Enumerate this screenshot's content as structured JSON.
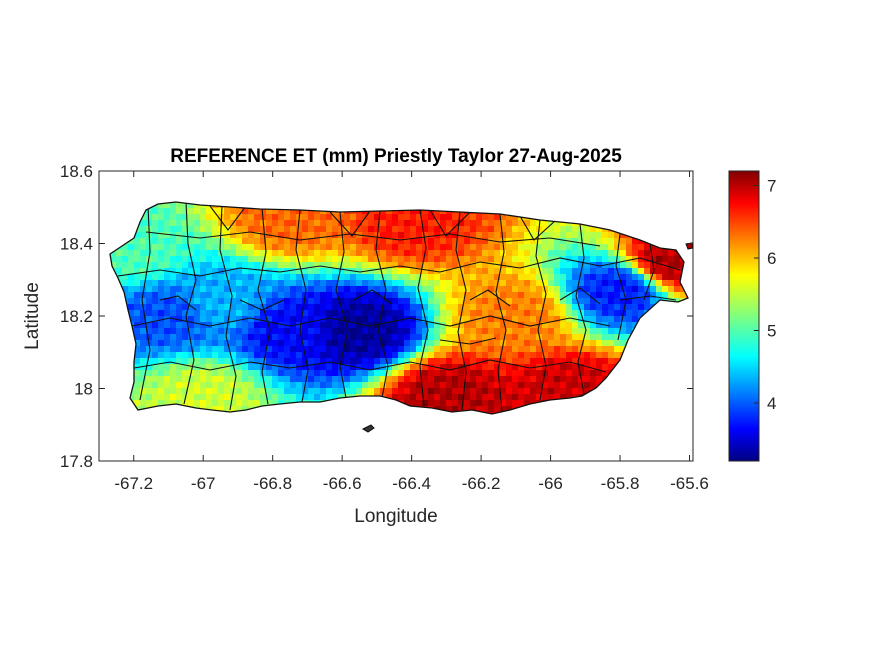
{
  "chart_data": {
    "type": "heatmap",
    "title": "REFERENCE ET (mm) Priestly Taylor 27-Aug-2025",
    "xlabel": "Longitude",
    "ylabel": "Latitude",
    "xlim": [
      -67.3,
      -65.59
    ],
    "ylim": [
      17.8,
      18.6
    ],
    "xticks": [
      -67.2,
      -67,
      -66.8,
      -66.6,
      -66.4,
      -66.2,
      -66,
      -65.8,
      -65.6
    ],
    "xtick_labels": [
      "-67.2",
      "-67",
      "-66.8",
      "-66.6",
      "-66.4",
      "-66.2",
      "-66",
      "-65.8",
      "-65.6"
    ],
    "yticks": [
      17.8,
      18,
      18.2,
      18.4,
      18.6
    ],
    "ytick_labels": [
      "17.8",
      "18",
      "18.2",
      "18.4",
      "18.6"
    ],
    "colormap": "jet",
    "colorbar": {
      "range": [
        3.2,
        7.2
      ],
      "ticks": [
        4,
        5,
        6,
        7
      ],
      "tick_labels": [
        "4",
        "5",
        "6",
        "7"
      ]
    },
    "grid": false,
    "region": "Puerto Rico (municipality boundaries)",
    "value_pattern": [
      {
        "lon": -66.55,
        "lat": 18.16,
        "value": 3.3
      },
      {
        "lon": -66.75,
        "lat": 18.16,
        "value": 3.7
      },
      {
        "lon": -66.95,
        "lat": 18.24,
        "value": 4.4
      },
      {
        "lon": -67.1,
        "lat": 18.2,
        "value": 4.0
      },
      {
        "lon": -65.8,
        "lat": 18.27,
        "value": 3.8
      },
      {
        "lon": -66.4,
        "lat": 18.46,
        "value": 6.6
      },
      {
        "lon": -66.75,
        "lat": 18.47,
        "value": 6.3
      },
      {
        "lon": -66.3,
        "lat": 17.98,
        "value": 7.0
      },
      {
        "lon": -65.95,
        "lat": 17.99,
        "value": 6.9
      },
      {
        "lon": -65.65,
        "lat": 18.35,
        "value": 7.0
      },
      {
        "lon": -66.1,
        "lat": 18.2,
        "value": 6.2
      },
      {
        "lon": -67.0,
        "lat": 17.98,
        "value": 5.5
      },
      {
        "lon": -67.2,
        "lat": 18.38,
        "value": 5.0
      }
    ]
  }
}
